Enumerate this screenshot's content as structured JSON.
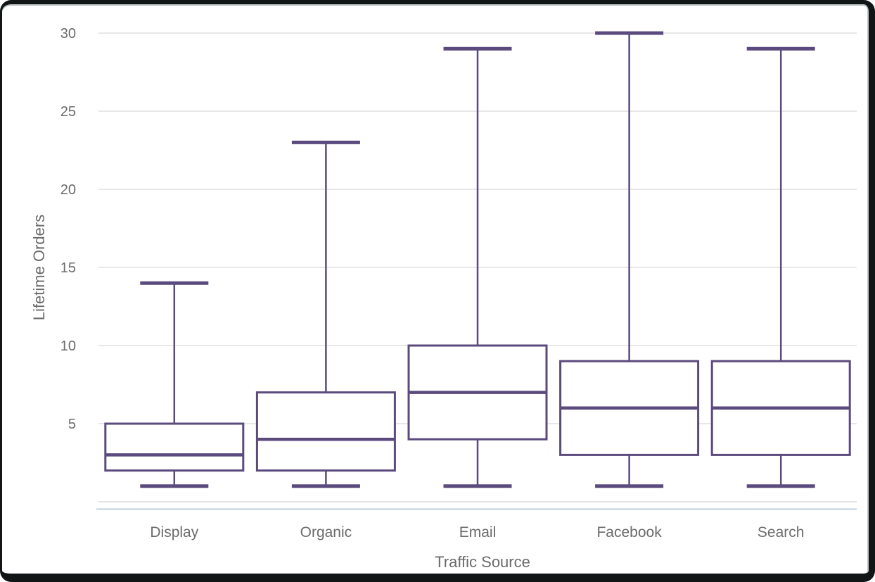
{
  "chart_data": {
    "type": "boxplot",
    "title": "",
    "xlabel": "Traffic Source",
    "ylabel": "Lifetime Orders",
    "categories": [
      "Display",
      "Organic",
      "Email",
      "Facebook",
      "Search"
    ],
    "boxes": [
      {
        "category": "Display",
        "min": 1,
        "q1": 2,
        "median": 3,
        "q3": 5,
        "max": 14
      },
      {
        "category": "Organic",
        "min": 1,
        "q1": 2,
        "median": 4,
        "q3": 7,
        "max": 23
      },
      {
        "category": "Email",
        "min": 1,
        "q1": 4,
        "median": 7,
        "q3": 10,
        "max": 29
      },
      {
        "category": "Facebook",
        "min": 1,
        "q1": 3,
        "median": 6,
        "q3": 9,
        "max": 30
      },
      {
        "category": "Search",
        "min": 1,
        "q1": 3,
        "median": 6,
        "q3": 9,
        "max": 29
      }
    ],
    "yticks": [
      5,
      10,
      15,
      20,
      25,
      30
    ],
    "ylim": [
      0,
      30
    ],
    "grid": true,
    "legend": "none",
    "colors": {
      "box_stroke": "#5b4a7e",
      "box_fill": "#ffffff",
      "gridline": "#e7e7e7",
      "zero_line": "#e3e3e3",
      "axis_line": "#ccd8e4",
      "label_text": "#6b6b6b",
      "frame": "#121516"
    }
  }
}
